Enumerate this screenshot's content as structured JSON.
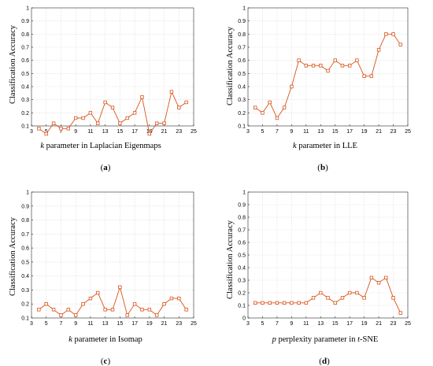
{
  "series_color": "#d95319",
  "chart_data": [
    {
      "type": "line",
      "panel_label": "(a)",
      "panel_letter": "a",
      "xlabel_var": "k",
      "xlabel_rest": " parameter in Laplacian Eigenmaps",
      "ylabel": "Classification Accuracy",
      "xlim": [
        3,
        25
      ],
      "ylim": [
        0.1,
        1
      ],
      "xticks": [
        3,
        5,
        7,
        9,
        11,
        13,
        15,
        17,
        19,
        21,
        23,
        25
      ],
      "yticks": [
        0.1,
        0.2,
        0.3,
        0.4,
        0.5,
        0.6,
        0.7,
        0.8,
        0.9,
        1
      ],
      "grid": true,
      "x": [
        4,
        5,
        6,
        7,
        8,
        9,
        10,
        11,
        12,
        13,
        14,
        15,
        16,
        17,
        18,
        19,
        20,
        21,
        22,
        23,
        24
      ],
      "y": [
        0.08,
        0.04,
        0.12,
        0.08,
        0.08,
        0.16,
        0.16,
        0.2,
        0.12,
        0.28,
        0.24,
        0.12,
        0.16,
        0.2,
        0.32,
        0.04,
        0.12,
        0.12,
        0.36,
        0.24,
        0.28
      ]
    },
    {
      "type": "line",
      "panel_label": "(b)",
      "panel_letter": "b",
      "xlabel_var": "k",
      "xlabel_rest": " parameter in LLE",
      "ylabel": "Classification Accuracy",
      "xlim": [
        3,
        25
      ],
      "ylim": [
        0.1,
        1
      ],
      "xticks": [
        3,
        5,
        7,
        9,
        11,
        13,
        15,
        17,
        19,
        21,
        23,
        25
      ],
      "yticks": [
        0.1,
        0.2,
        0.3,
        0.4,
        0.5,
        0.6,
        0.7,
        0.8,
        0.9,
        1
      ],
      "grid": true,
      "x": [
        4,
        5,
        6,
        7,
        8,
        9,
        10,
        11,
        12,
        13,
        14,
        15,
        16,
        17,
        18,
        19,
        20,
        21,
        22,
        23,
        24
      ],
      "y": [
        0.24,
        0.2,
        0.28,
        0.16,
        0.24,
        0.4,
        0.6,
        0.56,
        0.56,
        0.56,
        0.52,
        0.6,
        0.56,
        0.56,
        0.6,
        0.48,
        0.48,
        0.68,
        0.8,
        0.8,
        0.72
      ]
    },
    {
      "type": "line",
      "panel_label": "(c)",
      "panel_letter": "c",
      "xlabel_var": "k",
      "xlabel_rest": " parameter in Isomap",
      "ylabel": "Classification Accuracy",
      "xlim": [
        3,
        25
      ],
      "ylim": [
        0.1,
        1
      ],
      "xticks": [
        3,
        5,
        7,
        9,
        11,
        13,
        15,
        17,
        19,
        21,
        23,
        25
      ],
      "yticks": [
        0.1,
        0.2,
        0.3,
        0.4,
        0.5,
        0.6,
        0.7,
        0.8,
        0.9,
        1
      ],
      "grid": true,
      "x": [
        4,
        5,
        6,
        7,
        8,
        9,
        10,
        11,
        12,
        13,
        14,
        15,
        16,
        17,
        18,
        19,
        20,
        21,
        22,
        23,
        24
      ],
      "y": [
        0.16,
        0.2,
        0.16,
        0.12,
        0.16,
        0.12,
        0.2,
        0.24,
        0.28,
        0.16,
        0.16,
        0.32,
        0.12,
        0.2,
        0.16,
        0.16,
        0.12,
        0.2,
        0.24,
        0.24,
        0.16
      ]
    },
    {
      "type": "line",
      "panel_label": "(d)",
      "panel_letter": "d",
      "xlabel_var": "p",
      "xlabel_rest": " perplexity parameter in ",
      "xlabel_var2": "t",
      "xlabel_rest2": "-SNE",
      "ylabel": "Classification Accuracy",
      "xlim": [
        3,
        25
      ],
      "ylim": [
        0,
        1
      ],
      "xticks": [
        3,
        5,
        7,
        9,
        11,
        13,
        15,
        17,
        19,
        21,
        23,
        25
      ],
      "yticks": [
        0,
        0.1,
        0.2,
        0.3,
        0.4,
        0.5,
        0.6,
        0.7,
        0.8,
        0.9,
        1
      ],
      "grid": true,
      "x": [
        4,
        5,
        6,
        7,
        8,
        9,
        10,
        11,
        12,
        13,
        14,
        15,
        16,
        17,
        18,
        19,
        20,
        21,
        22,
        23,
        24
      ],
      "y": [
        0.12,
        0.12,
        0.12,
        0.12,
        0.12,
        0.12,
        0.12,
        0.12,
        0.16,
        0.2,
        0.16,
        0.12,
        0.16,
        0.2,
        0.2,
        0.16,
        0.32,
        0.28,
        0.32,
        0.16,
        0.04
      ]
    }
  ]
}
